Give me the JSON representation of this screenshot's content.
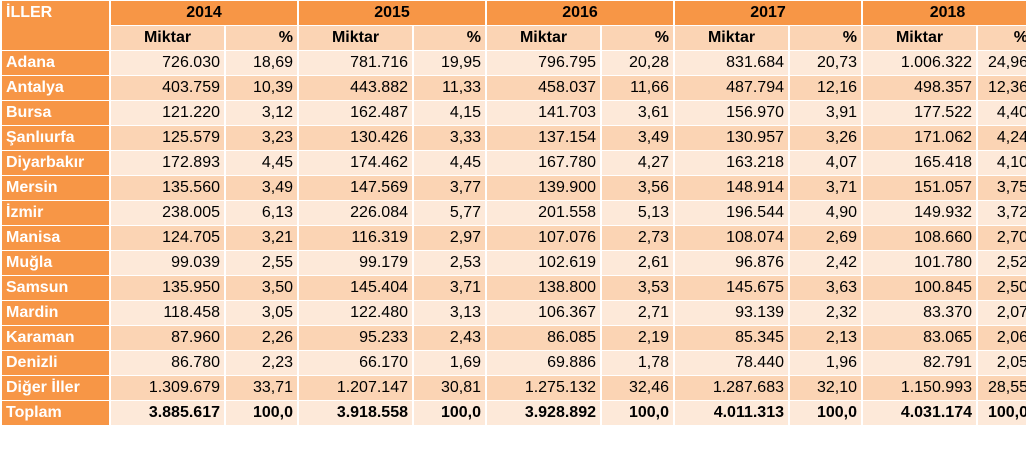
{
  "table": {
    "corner_label": "İLLER",
    "years": [
      "2014",
      "2015",
      "2016",
      "2017",
      "2018"
    ],
    "sub_headers": {
      "amount": "Miktar",
      "percent": "%"
    },
    "rows": [
      {
        "province": "Adana",
        "cells": [
          "726.030",
          "18,69",
          "781.716",
          "19,95",
          "796.795",
          "20,28",
          "831.684",
          "20,73",
          "1.006.322",
          "24,96"
        ]
      },
      {
        "province": "Antalya",
        "cells": [
          "403.759",
          "10,39",
          "443.882",
          "11,33",
          "458.037",
          "11,66",
          "487.794",
          "12,16",
          "498.357",
          "12,36"
        ]
      },
      {
        "province": "Bursa",
        "cells": [
          "121.220",
          "3,12",
          "162.487",
          "4,15",
          "141.703",
          "3,61",
          "156.970",
          "3,91",
          "177.522",
          "4,40"
        ]
      },
      {
        "province": "Şanlıurfa",
        "cells": [
          "125.579",
          "3,23",
          "130.426",
          "3,33",
          "137.154",
          "3,49",
          "130.957",
          "3,26",
          "171.062",
          "4,24"
        ]
      },
      {
        "province": "Diyarbakır",
        "cells": [
          "172.893",
          "4,45",
          "174.462",
          "4,45",
          "167.780",
          "4,27",
          "163.218",
          "4,07",
          "165.418",
          "4,10"
        ]
      },
      {
        "province": "Mersin",
        "cells": [
          "135.560",
          "3,49",
          "147.569",
          "3,77",
          "139.900",
          "3,56",
          "148.914",
          "3,71",
          "151.057",
          "3,75"
        ]
      },
      {
        "province": "İzmir",
        "cells": [
          "238.005",
          "6,13",
          "226.084",
          "5,77",
          "201.558",
          "5,13",
          "196.544",
          "4,90",
          "149.932",
          "3,72"
        ]
      },
      {
        "province": "Manisa",
        "cells": [
          "124.705",
          "3,21",
          "116.319",
          "2,97",
          "107.076",
          "2,73",
          "108.074",
          "2,69",
          "108.660",
          "2,70"
        ]
      },
      {
        "province": "Muğla",
        "cells": [
          "99.039",
          "2,55",
          "99.179",
          "2,53",
          "102.619",
          "2,61",
          "96.876",
          "2,42",
          "101.780",
          "2,52"
        ]
      },
      {
        "province": "Samsun",
        "cells": [
          "135.950",
          "3,50",
          "145.404",
          "3,71",
          "138.800",
          "3,53",
          "145.675",
          "3,63",
          "100.845",
          "2,50"
        ]
      },
      {
        "province": "Mardin",
        "cells": [
          "118.458",
          "3,05",
          "122.480",
          "3,13",
          "106.367",
          "2,71",
          "93.139",
          "2,32",
          "83.370",
          "2,07"
        ]
      },
      {
        "province": "Karaman",
        "cells": [
          "87.960",
          "2,26",
          "95.233",
          "2,43",
          "86.085",
          "2,19",
          "85.345",
          "2,13",
          "83.065",
          "2,06"
        ]
      },
      {
        "province": "Denizli",
        "cells": [
          "86.780",
          "2,23",
          "66.170",
          "1,69",
          "69.886",
          "1,78",
          "78.440",
          "1,96",
          "82.791",
          "2,05"
        ]
      },
      {
        "province": "Diğer İller",
        "cells": [
          "1.309.679",
          "33,71",
          "1.207.147",
          "30,81",
          "1.275.132",
          "32,46",
          "1.287.683",
          "32,10",
          "1.150.993",
          "28,55"
        ]
      },
      {
        "province": "Toplam",
        "cells": [
          "3.885.617",
          "100,0",
          "3.918.558",
          "100,0",
          "3.928.892",
          "100,0",
          "4.011.313",
          "100,0",
          "4.031.174",
          "100,0"
        ]
      }
    ]
  },
  "colors": {
    "header_orange": "#f79646",
    "band_dark": "#fbd4b4",
    "band_light": "#fde9d9",
    "province_text": "#ffffff"
  }
}
